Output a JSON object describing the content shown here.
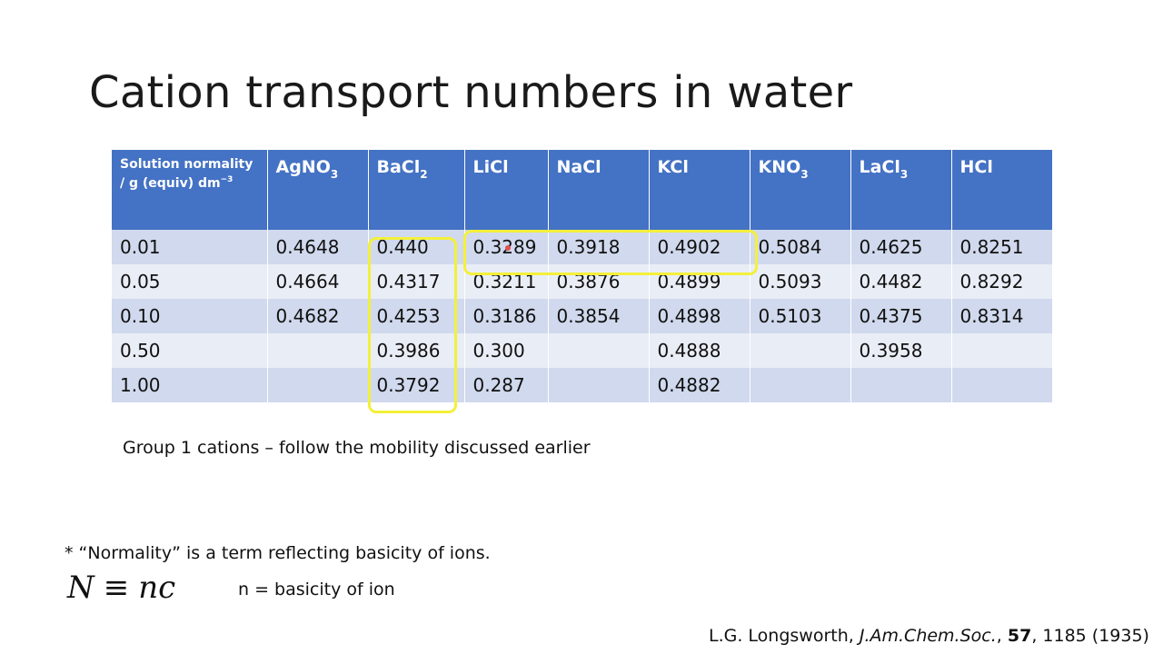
{
  "title": "Cation transport numbers in water",
  "table": {
    "header_first_line1": "Solution normality",
    "header_first_line2": "/ g (equiv) dm",
    "header_first_sup": "−3",
    "columns": [
      {
        "base": "AgNO",
        "sub": "3"
      },
      {
        "base": "BaCl",
        "sub": "2"
      },
      {
        "base": "LiCl",
        "sub": ""
      },
      {
        "base": "NaCl",
        "sub": ""
      },
      {
        "base": "KCl",
        "sub": ""
      },
      {
        "base": "KNO",
        "sub": "3"
      },
      {
        "base": "LaCl",
        "sub": "3"
      },
      {
        "base": "HCl",
        "sub": ""
      }
    ],
    "rows": [
      [
        "0.01",
        "0.4648",
        "0.440",
        "0.3289",
        "0.3918",
        "0.4902",
        "0.5084",
        "0.4625",
        "0.8251"
      ],
      [
        "0.05",
        "0.4664",
        "0.4317",
        "0.3211",
        "0.3876",
        "0.4899",
        "0.5093",
        "0.4482",
        "0.8292"
      ],
      [
        "0.10",
        "0.4682",
        "0.4253",
        "0.3186",
        "0.3854",
        "0.4898",
        "0.5103",
        "0.4375",
        "0.8314"
      ],
      [
        "0.50",
        "",
        "0.3986",
        "0.300",
        "",
        "0.4888",
        "",
        "0.3958",
        ""
      ],
      [
        "1.00",
        "",
        "0.3792",
        "0.287",
        "",
        "0.4882",
        "",
        "",
        ""
      ]
    ]
  },
  "caption": "Group 1 cations – follow the mobility discussed earlier",
  "footnote": "* “Normality” is a term reflecting basicity of ions.",
  "formula": {
    "left": "N",
    "op": "≡",
    "right": "nc"
  },
  "basicity_note": "n = basicity of ion",
  "citation": {
    "authors": "L.G. Longsworth, ",
    "journal": "J.Am.Chem.Soc.",
    "sep1": ", ",
    "volume": "57",
    "rest": ", 1185 (1935)"
  },
  "colors": {
    "header_bg": "#4472c4",
    "row_odd": "#d0d9ed",
    "row_even": "#e9edf6",
    "highlight": "#f3f03c"
  }
}
